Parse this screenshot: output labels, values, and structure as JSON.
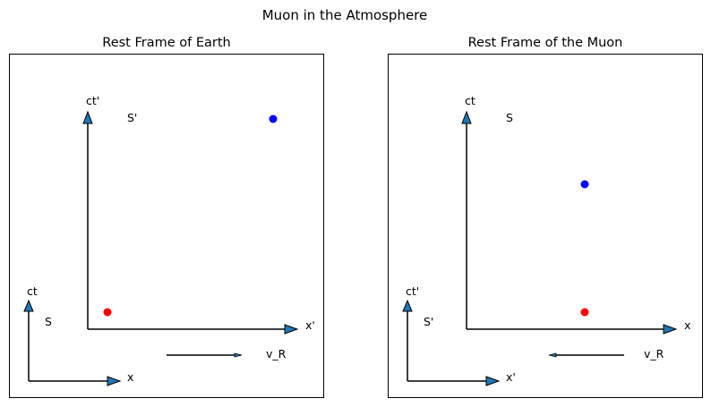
{
  "figure": {
    "title": "Muon in the Atmosphere"
  },
  "panels": [
    {
      "title": "Rest Frame of Earth",
      "outer_axes": {
        "time_label": "ct",
        "space_label": "x",
        "frame_label": "S"
      },
      "inner_axes": {
        "time_label": "ct'",
        "space_label": "x'",
        "frame_label": "S'"
      },
      "velocity": {
        "label": "v_R",
        "direction": "right"
      },
      "events": [
        {
          "name": "red",
          "color": "#ff0000"
        },
        {
          "name": "blue",
          "color": "#0000ff"
        }
      ]
    },
    {
      "title": "Rest Frame of the Muon",
      "outer_axes": {
        "time_label": "ct'",
        "space_label": "x'",
        "frame_label": "S'"
      },
      "inner_axes": {
        "time_label": "ct",
        "space_label": "x",
        "frame_label": "S"
      },
      "velocity": {
        "label": "v_R",
        "direction": "left"
      },
      "events": [
        {
          "name": "red",
          "color": "#ff0000"
        },
        {
          "name": "blue",
          "color": "#0000ff"
        }
      ]
    }
  ],
  "colors": {
    "arrowhead_fill": "#1f77b4",
    "line": "#000000"
  }
}
